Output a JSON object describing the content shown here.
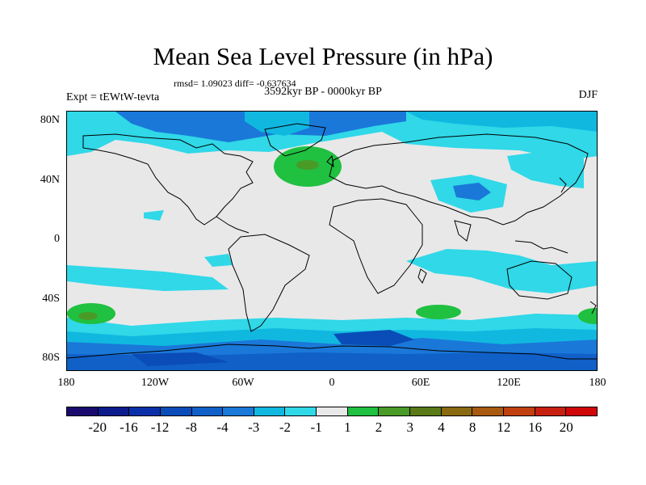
{
  "title": "Mean Sea Level Pressure (in hPa)",
  "stats": "rmsd= 1.09023 diff= -0.637634",
  "period": "3592kyr BP - 0000kyr BP",
  "experiment": "Expt = tEWtW-tevta",
  "season": "DJF",
  "lat_labels": [
    "80N",
    "40N",
    "0",
    "40S",
    "80S"
  ],
  "lon_labels": [
    "180",
    "120W",
    "60W",
    "0",
    "60E",
    "120E",
    "180"
  ],
  "colorbar": {
    "colors": [
      "#1a0a6e",
      "#0d1c8c",
      "#0a30a8",
      "#0a4cb8",
      "#1060c8",
      "#1a78d8",
      "#10b8e0",
      "#30d8e8",
      "#e8e8e8",
      "#20c040",
      "#4a9a28",
      "#5a7a18",
      "#8a6a10",
      "#a85a10",
      "#c04010",
      "#c82010",
      "#d00808"
    ],
    "labels": [
      "-20",
      "-16",
      "-12",
      "-8",
      "-4",
      "-3",
      "-2",
      "-1",
      "1",
      "2",
      "3",
      "4",
      "8",
      "12",
      "16",
      "20"
    ]
  }
}
